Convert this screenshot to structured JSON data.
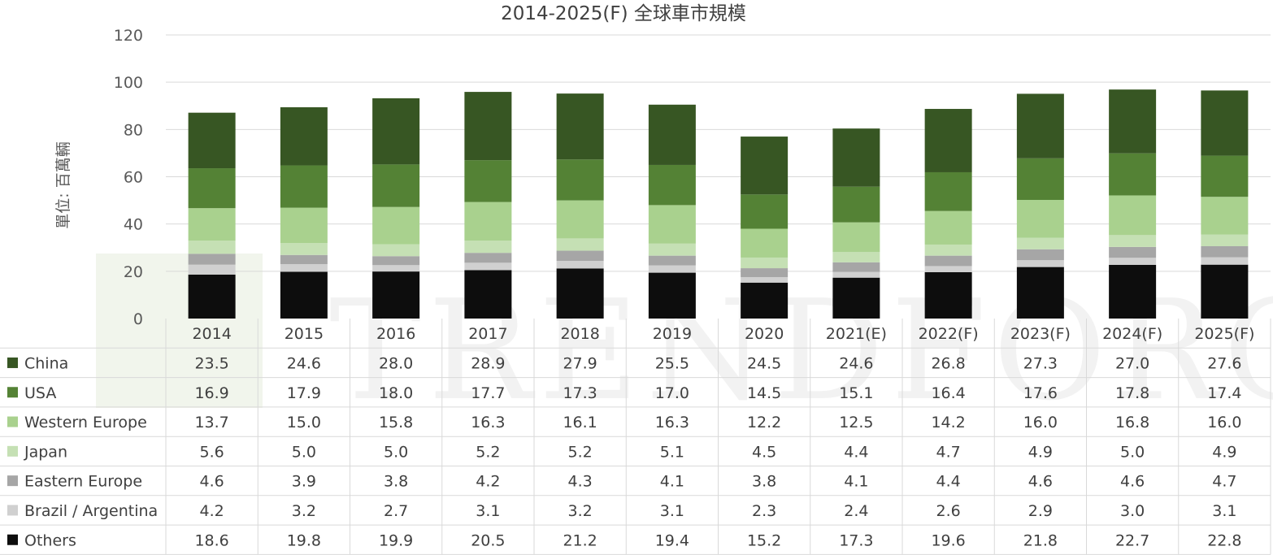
{
  "chart_data": {
    "type": "bar",
    "stacked": true,
    "title": "2014-2025(F) 全球車市規模",
    "ylabel": "單位: 百萬輛",
    "xlabel": "",
    "ylim": [
      0,
      120
    ],
    "yticks": [
      0,
      20,
      40,
      60,
      80,
      100,
      120
    ],
    "grid": true,
    "legend": "data-table-left",
    "categories": [
      "2014",
      "2015",
      "2016",
      "2017",
      "2018",
      "2019",
      "2020",
      "2021(E)",
      "2022(F)",
      "2023(F)",
      "2024(F)",
      "2025(F)"
    ],
    "series": [
      {
        "name": "China",
        "color": "#375623",
        "values": [
          23.5,
          24.6,
          28.0,
          28.9,
          27.9,
          25.5,
          24.5,
          24.6,
          26.8,
          27.3,
          27.0,
          27.6
        ]
      },
      {
        "name": "USA",
        "color": "#548235",
        "values": [
          16.9,
          17.9,
          18.0,
          17.7,
          17.3,
          17.0,
          14.5,
          15.1,
          16.4,
          17.6,
          17.8,
          17.4
        ]
      },
      {
        "name": "Western Europe",
        "color": "#a9d18e",
        "values": [
          13.7,
          15.0,
          15.8,
          16.3,
          16.1,
          16.3,
          12.2,
          12.5,
          14.2,
          16.0,
          16.8,
          16.0
        ]
      },
      {
        "name": "Japan",
        "color": "#c5e0b4",
        "values": [
          5.6,
          5.0,
          5.0,
          5.2,
          5.2,
          5.1,
          4.5,
          4.4,
          4.7,
          4.9,
          5.0,
          4.9
        ]
      },
      {
        "name": "Eastern Europe",
        "color": "#a6a6a6",
        "values": [
          4.6,
          3.9,
          3.8,
          4.2,
          4.3,
          4.1,
          3.8,
          4.1,
          4.4,
          4.6,
          4.6,
          4.7
        ]
      },
      {
        "name": "Brazil / Argentina",
        "color": "#d0d0d0",
        "values": [
          4.2,
          3.2,
          2.7,
          3.1,
          3.2,
          3.1,
          2.3,
          2.4,
          2.6,
          2.9,
          3.0,
          3.1
        ]
      },
      {
        "name": "Others",
        "color": "#0d0d0d",
        "values": [
          18.6,
          19.8,
          19.9,
          20.5,
          21.2,
          19.4,
          15.2,
          17.3,
          19.6,
          21.8,
          22.7,
          22.8
        ]
      }
    ]
  },
  "watermark": "TRENDFORCE"
}
